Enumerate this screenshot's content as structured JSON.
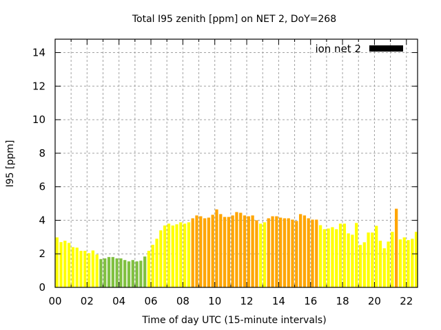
{
  "chart_data": {
    "type": "bar",
    "title": "Total I95 zenith [ppm] on NET 2, DoY=268",
    "xlabel": "Time of day UTC (15-minute intervals)",
    "ylabel": "I95 [ppm]",
    "xlim": [
      0,
      22.7
    ],
    "ylim": [
      0,
      14.8
    ],
    "grid": true,
    "x_ticks": [
      0,
      2,
      4,
      6,
      8,
      10,
      12,
      14,
      16,
      18,
      20,
      22
    ],
    "x_tick_labels": [
      "00",
      "02",
      "04",
      "06",
      "08",
      "10",
      "12",
      "14",
      "16",
      "18",
      "20",
      "22"
    ],
    "y_ticks": [
      0,
      2,
      4,
      6,
      8,
      10,
      12,
      14
    ],
    "y_tick_labels": [
      "0",
      "2",
      "4",
      "6",
      "8",
      "10",
      "12",
      "14"
    ],
    "interval_hours": 0.25,
    "legend": {
      "label": "ion net 2",
      "color": "#000000",
      "placement": "top-right"
    },
    "colors": {
      "yellow": "#ffff00",
      "green": "#80c040",
      "orange": "#ffa500"
    },
    "series": [
      {
        "name": "ion net 2",
        "values": [
          2.98,
          2.7,
          2.78,
          2.65,
          2.4,
          2.37,
          2.18,
          2.18,
          2.04,
          2.2,
          1.96,
          1.69,
          1.73,
          1.81,
          1.81,
          1.73,
          1.73,
          1.63,
          1.55,
          1.63,
          1.55,
          1.59,
          1.84,
          2.18,
          2.54,
          2.9,
          3.4,
          3.69,
          3.8,
          3.69,
          3.76,
          3.88,
          3.8,
          3.88,
          4.12,
          4.29,
          4.24,
          4.12,
          4.16,
          4.33,
          4.65,
          4.37,
          4.2,
          4.2,
          4.29,
          4.49,
          4.45,
          4.29,
          4.24,
          4.29,
          4.0,
          3.8,
          3.88,
          4.12,
          4.24,
          4.24,
          4.16,
          4.12,
          4.12,
          4.04,
          3.96,
          4.37,
          4.29,
          4.12,
          4.04,
          4.04,
          3.71,
          3.47,
          3.51,
          3.59,
          3.47,
          3.8,
          3.8,
          3.22,
          3.14,
          3.84,
          2.53,
          2.69,
          3.27,
          3.27,
          3.67,
          2.78,
          2.33,
          2.73,
          3.31,
          4.69,
          2.86,
          2.98,
          2.82,
          2.9,
          3.31,
          2.78
        ],
        "color_classes": [
          "yellow",
          "yellow",
          "yellow",
          "yellow",
          "yellow",
          "yellow",
          "yellow",
          "yellow",
          "yellow",
          "yellow",
          "yellow",
          "green",
          "green",
          "green",
          "green",
          "green",
          "green",
          "green",
          "green",
          "green",
          "green",
          "green",
          "green",
          "yellow",
          "yellow",
          "yellow",
          "yellow",
          "yellow",
          "yellow",
          "yellow",
          "yellow",
          "yellow",
          "yellow",
          "yellow",
          "orange",
          "orange",
          "orange",
          "orange",
          "orange",
          "orange",
          "orange",
          "orange",
          "orange",
          "orange",
          "orange",
          "orange",
          "orange",
          "orange",
          "orange",
          "orange",
          "orange",
          "yellow",
          "yellow",
          "orange",
          "orange",
          "orange",
          "orange",
          "orange",
          "orange",
          "orange",
          "orange",
          "orange",
          "orange",
          "orange",
          "orange",
          "orange",
          "yellow",
          "yellow",
          "yellow",
          "yellow",
          "yellow",
          "yellow",
          "yellow",
          "yellow",
          "yellow",
          "yellow",
          "yellow",
          "yellow",
          "yellow",
          "yellow",
          "yellow",
          "yellow",
          "yellow",
          "yellow",
          "yellow",
          "orange",
          "yellow",
          "yellow",
          "yellow",
          "yellow",
          "yellow",
          "yellow"
        ]
      }
    ]
  }
}
